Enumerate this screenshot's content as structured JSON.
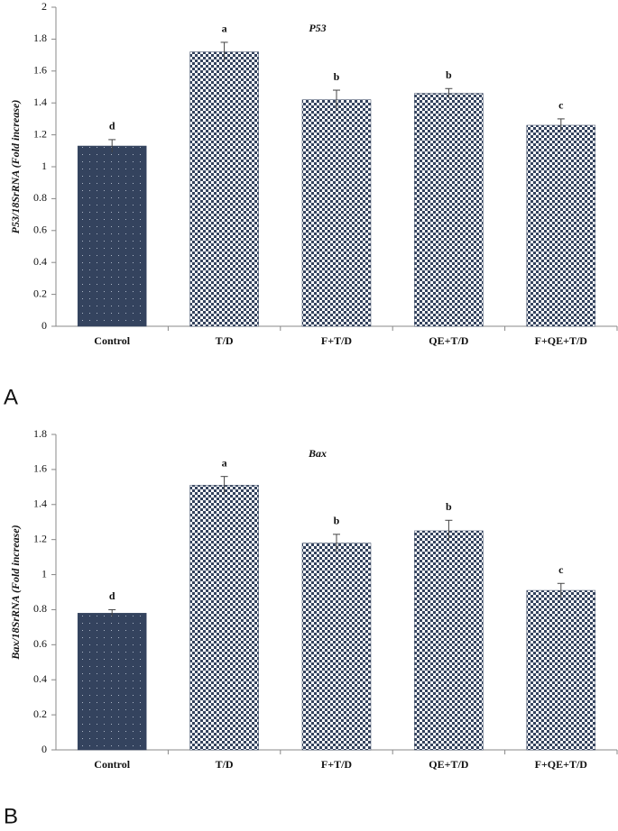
{
  "chart_data": [
    {
      "type": "bar",
      "panel": "A",
      "title": "P53",
      "y_label": "P53/18SrRNA (Fold increase)",
      "categories": [
        "Control",
        "T/D",
        "F+T/D",
        "QE+T/D",
        "F+QE+T/D"
      ],
      "values": [
        1.13,
        1.72,
        1.42,
        1.46,
        1.26
      ],
      "errors": [
        0.04,
        0.06,
        0.06,
        0.03,
        0.04
      ],
      "letters": [
        "d",
        "a",
        "b",
        "b",
        "c"
      ],
      "color": "#34435e",
      "patterns": [
        "dots",
        "checker",
        "checker",
        "checker",
        "checker"
      ],
      "ylim": [
        0,
        2
      ],
      "yticks": [
        0,
        0.2,
        0.4,
        0.6,
        0.8,
        1,
        1.2,
        1.4,
        1.6,
        1.8,
        2
      ]
    },
    {
      "type": "bar",
      "panel": "B",
      "title": "Bax",
      "y_label": "Bax/18SrRNA (Fold increase)",
      "categories": [
        "Control",
        "T/D",
        "F+T/D",
        "QE+T/D",
        "F+QE+T/D"
      ],
      "values": [
        0.78,
        1.51,
        1.18,
        1.25,
        0.91
      ],
      "errors": [
        0.02,
        0.05,
        0.05,
        0.06,
        0.04
      ],
      "letters": [
        "d",
        "a",
        "b",
        "b",
        "c"
      ],
      "color": "#34435e",
      "patterns": [
        "dots",
        "checker",
        "checker",
        "checker",
        "checker"
      ],
      "ylim": [
        0,
        1.8
      ],
      "yticks": [
        0,
        0.2,
        0.4,
        0.6,
        0.8,
        1,
        1.2,
        1.4,
        1.6,
        1.8
      ]
    }
  ]
}
